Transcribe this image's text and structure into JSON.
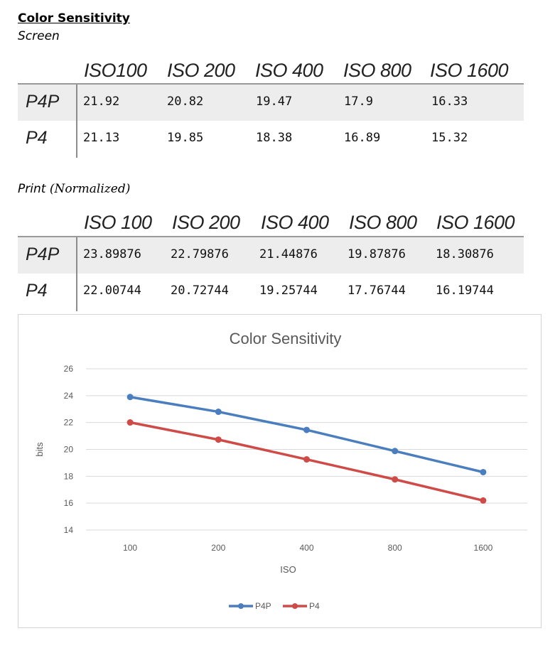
{
  "heading": "Color Sensitivity",
  "screen_label": "Screen",
  "screen_table": {
    "columns": [
      "ISO100",
      "ISO 200",
      "ISO 400",
      "ISO 800",
      "ISO 1600"
    ],
    "rows": [
      {
        "label": "P4P",
        "values": [
          "21.92",
          "20.82",
          "19.47",
          "17.9",
          "16.33"
        ]
      },
      {
        "label": "P4",
        "values": [
          "21.13",
          "19.85",
          "18.38",
          "16.89",
          "15.32"
        ]
      }
    ]
  },
  "print_label": "Print",
  "print_note": "(Normalized)",
  "print_table": {
    "columns": [
      "ISO 100",
      "ISO 200",
      "ISO 400",
      "ISO 800",
      "ISO 1600"
    ],
    "rows": [
      {
        "label": "P4P",
        "values": [
          "23.89876",
          "22.79876",
          "21.44876",
          "19.87876",
          "18.30876"
        ]
      },
      {
        "label": "P4",
        "values": [
          "22.00744",
          "20.72744",
          "19.25744",
          "17.76744",
          "16.19744"
        ]
      }
    ]
  },
  "chart_data": {
    "type": "line",
    "title": "Color Sensitivity",
    "xlabel": "ISO",
    "ylabel": "bits",
    "categories": [
      "100",
      "200",
      "400",
      "800",
      "1600"
    ],
    "ylim": [
      14,
      26
    ],
    "yticks": [
      14,
      16,
      18,
      20,
      22,
      24,
      26
    ],
    "grid": true,
    "legend_position": "bottom",
    "series": [
      {
        "name": "P4P",
        "color": "#4a7ebf",
        "values": [
          23.89876,
          22.79876,
          21.44876,
          19.87876,
          18.30876
        ]
      },
      {
        "name": "P4",
        "color": "#cf4b47",
        "values": [
          22.00744,
          20.72744,
          19.25744,
          17.76744,
          16.19744
        ]
      }
    ]
  }
}
